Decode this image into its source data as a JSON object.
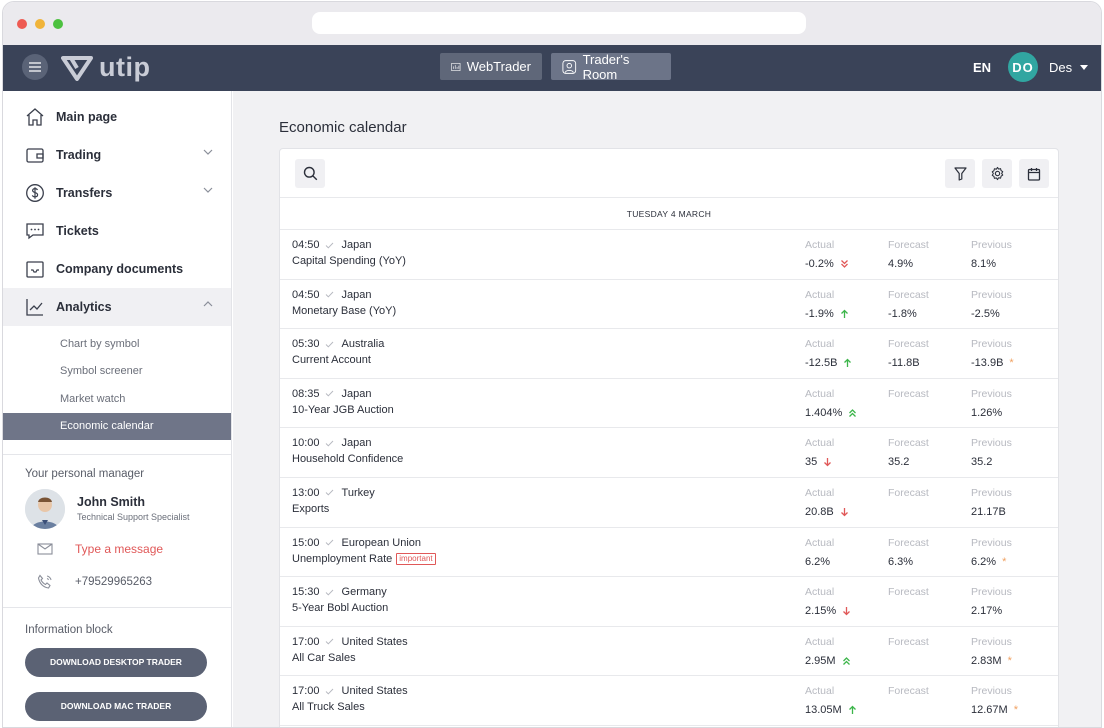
{
  "header": {
    "logo_text": "utip",
    "webtrader_label": "WebTrader",
    "traders_room_label": "Trader's Room",
    "lang": "EN",
    "avatar_initials": "DO",
    "user_name": "Des"
  },
  "sidebar": {
    "items": [
      {
        "label": "Main page",
        "icon": "home-icon"
      },
      {
        "label": "Trading",
        "icon": "wallet-icon"
      },
      {
        "label": "Transfers",
        "icon": "dollar-icon"
      },
      {
        "label": "Tickets",
        "icon": "chat-icon"
      },
      {
        "label": "Company documents",
        "icon": "inbox-icon"
      },
      {
        "label": "Analytics",
        "icon": "chart-icon"
      }
    ],
    "subitems": [
      "Chart by symbol",
      "Symbol screener",
      "Market watch",
      "Economic calendar"
    ],
    "personal_manager": {
      "title": "Your personal manager",
      "name": "John Smith",
      "role": "Technical Support Specialist",
      "message": "Type a message",
      "phone": "+79529965263"
    },
    "info_block": {
      "title": "Information block",
      "download_desktop": "DOWNLOAD DESKTOP TRADER",
      "download_mac": "DOWNLOAD MAC TRADER"
    }
  },
  "main": {
    "title": "Economic calendar",
    "date_header": "TUESDAY 4 MARCH",
    "col_labels": {
      "actual": "Actual",
      "forecast": "Forecast",
      "previous": "Previous"
    },
    "events": [
      {
        "time": "04:50",
        "country": "Japan",
        "name": "Capital Spending (YoY)",
        "actual": "-0.2%",
        "trend": "double-down",
        "forecast": "4.9%",
        "previous": "8.1%",
        "revised": false,
        "important": ""
      },
      {
        "time": "04:50",
        "country": "Japan",
        "name": "Monetary Base (YoY)",
        "actual": "-1.9%",
        "trend": "up",
        "forecast": "-1.8%",
        "previous": "-2.5%",
        "revised": false,
        "important": ""
      },
      {
        "time": "05:30",
        "country": "Australia",
        "name": "Current Account",
        "actual": "-12.5B",
        "trend": "up",
        "forecast": "-11.8B",
        "previous": "-13.9B",
        "revised": true,
        "important": ""
      },
      {
        "time": "08:35",
        "country": "Japan",
        "name": "10-Year JGB Auction",
        "actual": "1.404%",
        "trend": "double-up",
        "forecast": "",
        "previous": "1.26%",
        "revised": false,
        "important": ""
      },
      {
        "time": "10:00",
        "country": "Japan",
        "name": "Household Confidence",
        "actual": "35",
        "trend": "down",
        "forecast": "35.2",
        "previous": "35.2",
        "revised": false,
        "important": ""
      },
      {
        "time": "13:00",
        "country": "Turkey",
        "name": "Exports",
        "actual": "20.8B",
        "trend": "down",
        "forecast": "",
        "previous": "21.17B",
        "revised": false,
        "important": ""
      },
      {
        "time": "15:00",
        "country": "European Union",
        "name": "Unemployment Rate",
        "actual": "6.2%",
        "trend": "",
        "forecast": "6.3%",
        "previous": "6.2%",
        "revised": true,
        "important": "important"
      },
      {
        "time": "15:30",
        "country": "Germany",
        "name": "5-Year Bobl Auction",
        "actual": "2.15%",
        "trend": "down",
        "forecast": "",
        "previous": "2.17%",
        "revised": false,
        "important": ""
      },
      {
        "time": "17:00",
        "country": "United States",
        "name": "All Car Sales",
        "actual": "2.95M",
        "trend": "double-up",
        "forecast": "",
        "previous": "2.83M",
        "revised": true,
        "important": ""
      },
      {
        "time": "17:00",
        "country": "United States",
        "name": "All Truck Sales",
        "actual": "13.05M",
        "trend": "up",
        "forecast": "",
        "previous": "12.67M",
        "revised": true,
        "important": ""
      }
    ]
  },
  "colors": {
    "nav_bg": "#3a4358",
    "accent_teal": "#31a6a1",
    "up_green": "#3cb54a",
    "down_red": "#e05858",
    "revised_orange": "#f0a060"
  }
}
